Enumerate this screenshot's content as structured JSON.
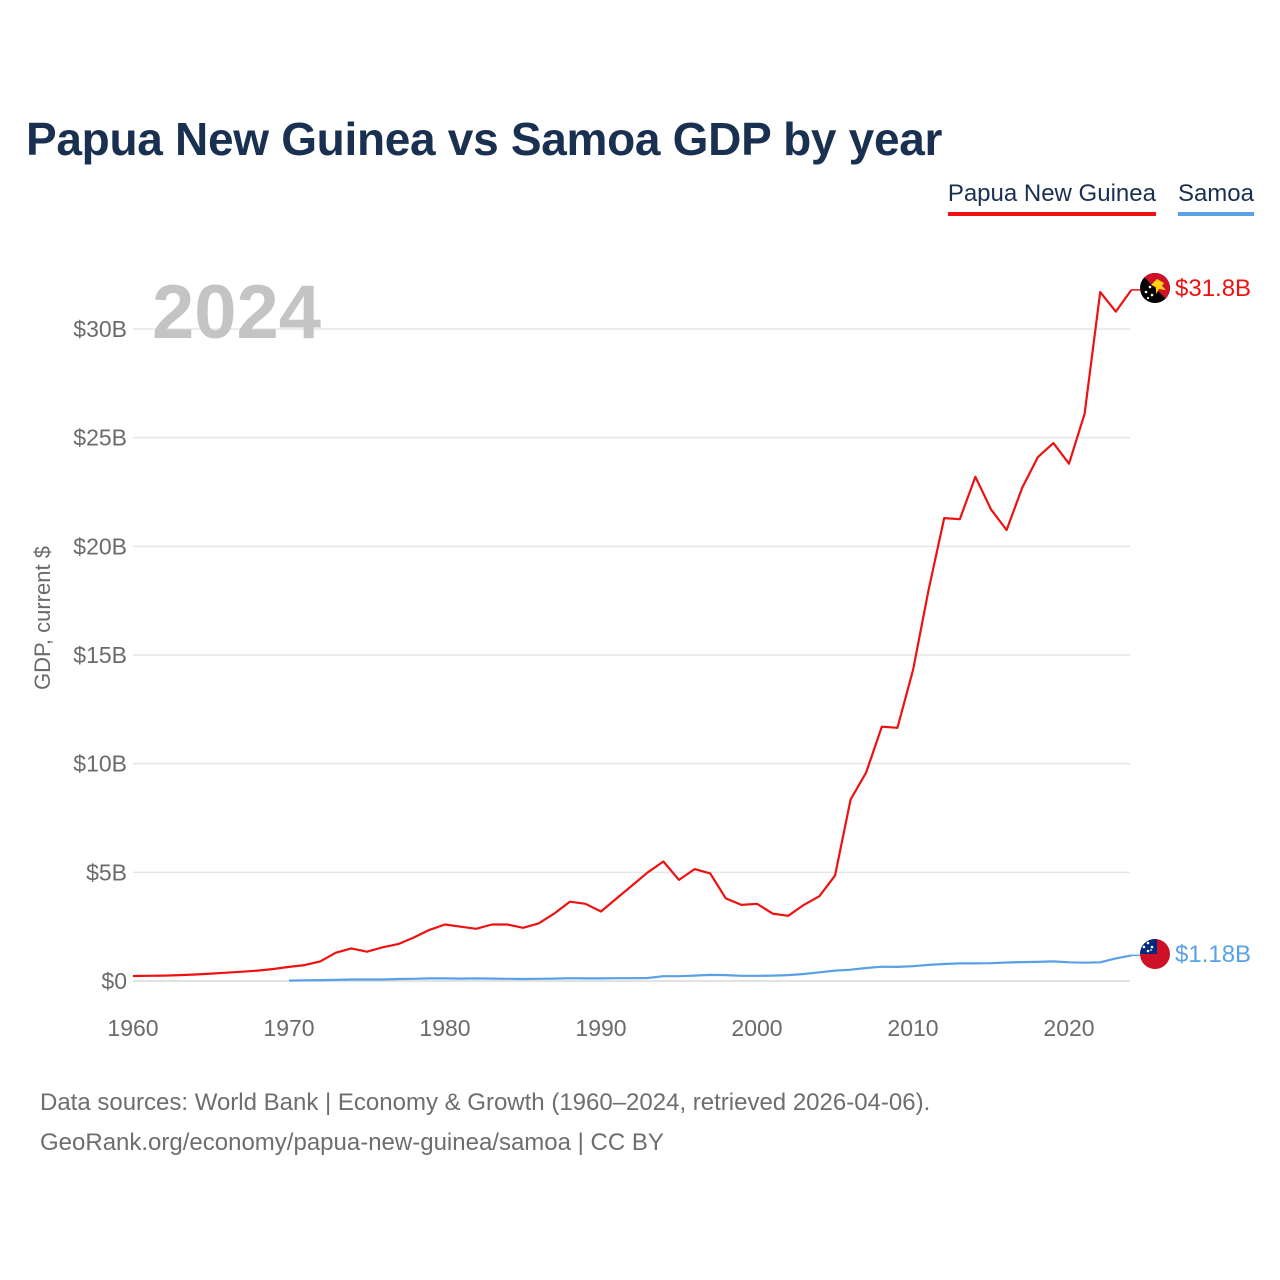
{
  "title": "Papua New Guinea vs Samoa GDP by year",
  "legend": [
    {
      "label": "Papua New Guinea",
      "color": "#ee1111"
    },
    {
      "label": "Samoa",
      "color": "#5aa0e6"
    }
  ],
  "source": {
    "line1": "Data sources: World Bank | Economy & Growth (1960–2024, retrieved 2026-04-06).",
    "line2": "GeoRank.org/economy/papua-new-guinea/samoa | CC BY"
  },
  "chart_data": {
    "type": "line",
    "title": "Papua New Guinea vs Samoa GDP by year",
    "xlabel": "",
    "ylabel": "GDP, current $",
    "year_label": "2024",
    "xlim": [
      1960,
      2024
    ],
    "ylim": [
      0,
      33
    ],
    "x_ticks": [
      1960,
      1970,
      1980,
      1990,
      2000,
      2010,
      2020
    ],
    "y_ticks": [
      {
        "value": 0,
        "label": "$0"
      },
      {
        "value": 5,
        "label": "$5B"
      },
      {
        "value": 10,
        "label": "$10B"
      },
      {
        "value": 15,
        "label": "$15B"
      },
      {
        "value": 20,
        "label": "$20B"
      },
      {
        "value": 25,
        "label": "$25B"
      },
      {
        "value": 30,
        "label": "$30B"
      }
    ],
    "grid": true,
    "series": [
      {
        "name": "Papua New Guinea",
        "color": "#ee1111",
        "end_label": "$31.8B",
        "x": [
          1960,
          1961,
          1962,
          1963,
          1964,
          1965,
          1966,
          1967,
          1968,
          1969,
          1970,
          1971,
          1972,
          1973,
          1974,
          1975,
          1976,
          1977,
          1978,
          1979,
          1980,
          1981,
          1982,
          1983,
          1984,
          1985,
          1986,
          1987,
          1988,
          1989,
          1990,
          1991,
          1992,
          1993,
          1994,
          1995,
          1996,
          1997,
          1998,
          1999,
          2000,
          2001,
          2002,
          2003,
          2004,
          2005,
          2006,
          2007,
          2008,
          2009,
          2010,
          2011,
          2012,
          2013,
          2014,
          2015,
          2016,
          2017,
          2018,
          2019,
          2020,
          2021,
          2022,
          2023,
          2024
        ],
        "values": [
          0.23,
          0.24,
          0.25,
          0.27,
          0.3,
          0.34,
          0.38,
          0.43,
          0.48,
          0.55,
          0.65,
          0.73,
          0.9,
          1.3,
          1.5,
          1.35,
          1.55,
          1.7,
          2.0,
          2.35,
          2.6,
          2.5,
          2.4,
          2.6,
          2.6,
          2.45,
          2.65,
          3.1,
          3.65,
          3.55,
          3.2,
          3.8,
          4.4,
          5.0,
          5.5,
          4.65,
          5.15,
          4.95,
          3.8,
          3.5,
          3.55,
          3.1,
          3.0,
          3.5,
          3.9,
          4.85,
          8.35,
          9.6,
          11.7,
          11.65,
          14.3,
          18.0,
          21.3,
          21.25,
          23.2,
          21.7,
          20.75,
          22.7,
          24.1,
          24.75,
          23.8,
          26.1,
          31.7,
          30.8,
          31.8
        ]
      },
      {
        "name": "Samoa",
        "color": "#5aa0e6",
        "end_label": "$1.18B",
        "x": [
          1970,
          1971,
          1972,
          1973,
          1974,
          1975,
          1976,
          1977,
          1978,
          1979,
          1980,
          1981,
          1982,
          1983,
          1984,
          1985,
          1986,
          1987,
          1988,
          1989,
          1990,
          1991,
          1992,
          1993,
          1994,
          1995,
          1996,
          1997,
          1998,
          1999,
          2000,
          2001,
          2002,
          2003,
          2004,
          2005,
          2006,
          2007,
          2008,
          2009,
          2010,
          2011,
          2012,
          2013,
          2014,
          2015,
          2016,
          2017,
          2018,
          2019,
          2020,
          2021,
          2022,
          2023,
          2024
        ],
        "values": [
          0.02,
          0.03,
          0.04,
          0.05,
          0.07,
          0.07,
          0.07,
          0.09,
          0.1,
          0.12,
          0.12,
          0.11,
          0.12,
          0.11,
          0.1,
          0.09,
          0.1,
          0.11,
          0.13,
          0.12,
          0.12,
          0.13,
          0.13,
          0.14,
          0.22,
          0.22,
          0.25,
          0.28,
          0.27,
          0.24,
          0.24,
          0.25,
          0.27,
          0.32,
          0.4,
          0.48,
          0.52,
          0.6,
          0.66,
          0.65,
          0.68,
          0.74,
          0.78,
          0.81,
          0.81,
          0.82,
          0.85,
          0.87,
          0.88,
          0.9,
          0.86,
          0.84,
          0.86,
          1.04,
          1.18
        ]
      }
    ]
  }
}
